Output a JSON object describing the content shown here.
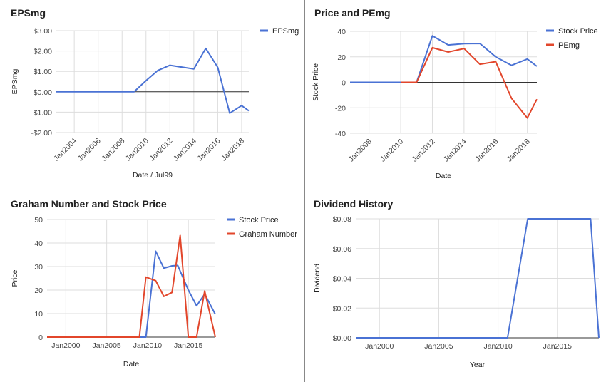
{
  "colors": {
    "blue": "#4a72d4",
    "red": "#e2462b"
  },
  "chart_data": [
    {
      "id": "eps",
      "type": "line",
      "title": "EPSmg",
      "xlabel": "Date / Jul99",
      "ylabel": "EPSmg",
      "xlim": [
        2002.5,
        2018.6
      ],
      "ylim": [
        -2,
        3
      ],
      "yticks": [
        3,
        2,
        1,
        0,
        -1,
        -2
      ],
      "ytick_labels": [
        "$3.00",
        "$2.00",
        "$1.00",
        "$0.00",
        "-$1.00",
        "-$2.00"
      ],
      "xticks": [
        2004,
        2006,
        2008,
        2010,
        2012,
        2014,
        2016,
        2018
      ],
      "xtick_labels": [
        "Jan2004",
        "Jan2006",
        "Jan2008",
        "Jan2010",
        "Jan2012",
        "Jan2014",
        "Jan2016",
        "Jan2018"
      ],
      "xtick_rotate": true,
      "baseline": 0,
      "legend": "right",
      "series": [
        {
          "name": "EPSmg",
          "color": "blue",
          "x": [
            2002.5,
            2009,
            2010,
            2011,
            2012,
            2014,
            2015,
            2016,
            2017,
            2018,
            2018.6
          ],
          "y": [
            0,
            0,
            0.55,
            1.05,
            1.3,
            1.12,
            2.13,
            1.2,
            -1.05,
            -0.68,
            -0.93
          ]
        }
      ]
    },
    {
      "id": "price_pe",
      "type": "line",
      "title": "Price and PEmg",
      "xlabel": "Date",
      "ylabel": "Stock Price",
      "xlim": [
        2006.8,
        2018.6
      ],
      "ylim": [
        -40,
        40
      ],
      "yticks": [
        40,
        20,
        0,
        -20,
        -40
      ],
      "ytick_labels": [
        "40",
        "20",
        "0",
        "-20",
        "-40"
      ],
      "xticks": [
        2008,
        2010,
        2012,
        2014,
        2016,
        2018
      ],
      "xtick_labels": [
        "Jan2008",
        "Jan2010",
        "Jan2012",
        "Jan2014",
        "Jan2016",
        "Jan2018"
      ],
      "xtick_rotate": true,
      "baseline": 0,
      "legend": "right",
      "series": [
        {
          "name": "Stock Price",
          "color": "blue",
          "x": [
            2006.8,
            2011,
            2012,
            2013,
            2014,
            2015,
            2016,
            2017,
            2018,
            2018.6
          ],
          "y": [
            0,
            0,
            36.5,
            29.3,
            30.3,
            30.5,
            20,
            13.3,
            18.3,
            12.6
          ]
        },
        {
          "name": "PEmg",
          "color": "red",
          "x": [
            2010,
            2011,
            2012,
            2013,
            2014,
            2015,
            2016,
            2017,
            2018,
            2018.6
          ],
          "y": [
            0,
            0,
            27.2,
            23.8,
            26.5,
            14.2,
            16.2,
            -12.6,
            -28,
            -13.3
          ]
        }
      ]
    },
    {
      "id": "graham",
      "type": "line",
      "title": "Graham Number and Stock Price",
      "xlabel": "Date",
      "ylabel": "Price",
      "xlim": [
        1997.7,
        2018.3
      ],
      "ylim": [
        0,
        50
      ],
      "yticks": [
        50,
        40,
        30,
        20,
        10,
        0
      ],
      "ytick_labels": [
        "50",
        "40",
        "30",
        "20",
        "10",
        "0"
      ],
      "xticks": [
        2000,
        2005,
        2010,
        2015
      ],
      "xtick_labels": [
        "Jan2000",
        "Jan2005",
        "Jan2010",
        "Jan2015"
      ],
      "xtick_rotate": false,
      "baseline": 0,
      "legend": "right",
      "series": [
        {
          "name": "Stock Price",
          "color": "blue",
          "x": [
            1997.7,
            2009.8,
            2011,
            2012,
            2013,
            2013.7,
            2015,
            2016,
            2017,
            2018.3
          ],
          "y": [
            0,
            0,
            36.5,
            29.3,
            30.3,
            30.5,
            20,
            13.3,
            18.3,
            9.7
          ]
        },
        {
          "name": "Graham Number",
          "color": "red",
          "x": [
            1997.7,
            2009,
            2009.8,
            2011,
            2012,
            2013,
            2014,
            2015,
            2016,
            2017,
            2018.3
          ],
          "y": [
            0,
            0,
            25.5,
            24,
            17.3,
            19,
            43.2,
            0,
            0,
            19.6,
            0
          ]
        }
      ]
    },
    {
      "id": "dividend",
      "type": "line",
      "title": "Dividend History",
      "xlabel": "Year",
      "ylabel": "Dividend",
      "xlim": [
        1998,
        2018.5
      ],
      "ylim": [
        0,
        0.08
      ],
      "yticks": [
        0.08,
        0.06,
        0.04,
        0.02,
        0
      ],
      "ytick_labels": [
        "$0.08",
        "$0.06",
        "$0.04",
        "$0.02",
        "$0.00"
      ],
      "xticks": [
        2000,
        2005,
        2010,
        2015
      ],
      "xtick_labels": [
        "Jan2000",
        "Jan2005",
        "Jan2010",
        "Jan2015"
      ],
      "xtick_rotate": false,
      "baseline": null,
      "legend": "none",
      "series": [
        {
          "name": "",
          "color": "blue",
          "x": [
            1998,
            2010.8,
            2012.5,
            2017.8,
            2018.5
          ],
          "y": [
            0,
            0,
            0.08,
            0.08,
            0
          ]
        }
      ]
    }
  ]
}
